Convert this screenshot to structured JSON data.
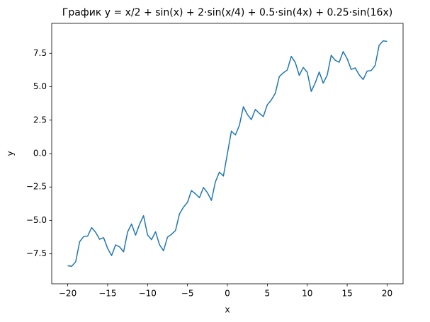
{
  "chart_data": {
    "type": "line",
    "title": "График y = x/2 + sin(x) + 2·sin(x/4) + 0.5·sin(4x) + 0.25·sin(16x)",
    "xlabel": "x",
    "ylabel": "y",
    "color": "#1f77b4",
    "x": [
      -20,
      -19.5,
      -19,
      -18.5,
      -18,
      -17.5,
      -17,
      -16.5,
      -16,
      -15.5,
      -15,
      -14.5,
      -14,
      -13.5,
      -13,
      -12.5,
      -12,
      -11.5,
      -11,
      -10.5,
      -10,
      -9.5,
      -9,
      -8.5,
      -8,
      -7.5,
      -7,
      -6.5,
      -6,
      -5.5,
      -5,
      -4.5,
      -4,
      -3.5,
      -3,
      -2.5,
      -2,
      -1.5,
      -1,
      -0.5,
      0,
      0.5,
      1,
      1.5,
      2,
      2.5,
      3,
      3.5,
      4,
      4.5,
      5,
      5.5,
      6,
      6.5,
      7,
      7.5,
      8,
      8.5,
      9,
      9.5,
      10,
      10.5,
      11,
      11.5,
      12,
      12.5,
      13,
      13.5,
      14,
      14.5,
      15,
      15.5,
      16,
      16.5,
      17,
      17.5,
      18,
      18.5,
      19,
      19.5,
      20
    ],
    "values": [
      -8.39,
      -8.43,
      -8.1,
      -6.59,
      -6.21,
      -6.17,
      -5.54,
      -5.89,
      -6.41,
      -6.29,
      -7.09,
      -7.63,
      -6.83,
      -6.98,
      -7.35,
      -5.87,
      -5.27,
      -6.1,
      -5.29,
      -4.65,
      -6.08,
      -6.44,
      -5.85,
      -6.82,
      -7.27,
      -6.25,
      -6.04,
      -5.76,
      -4.51,
      -4.01,
      -3.65,
      -2.77,
      -3.01,
      -3.3,
      -2.54,
      -2.93,
      -3.5,
      -2.11,
      -1.39,
      -1.68,
      0,
      1.68,
      1.39,
      2.11,
      3.5,
      2.93,
      2.54,
      3.3,
      3.01,
      2.77,
      3.65,
      4.01,
      4.51,
      5.76,
      6.04,
      6.25,
      7.27,
      6.82,
      5.85,
      6.44,
      6.08,
      4.65,
      5.29,
      6.1,
      5.27,
      5.87,
      7.35,
      6.98,
      6.83,
      7.63,
      7.09,
      6.29,
      6.41,
      5.89,
      5.54,
      6.17,
      6.21,
      6.59,
      8.1,
      8.43,
      8.39
    ],
    "xlim": [
      -22,
      22
    ],
    "xticks": [
      {
        "value": -20,
        "label": "−20"
      },
      {
        "value": -15,
        "label": "−15"
      },
      {
        "value": -10,
        "label": "−10"
      },
      {
        "value": -5,
        "label": "−5"
      },
      0,
      5,
      10,
      15,
      20
    ],
    "ylim": [
      -9.74,
      9.74
    ],
    "yticks": [
      {
        "value": -7.5,
        "label": "−7.5"
      },
      {
        "value": -5,
        "label": "−5.0"
      },
      {
        "value": -2.5,
        "label": "−2.5"
      },
      {
        "value": 0,
        "label": "0.0"
      },
      2.5,
      {
        "value": 5,
        "label": "5.0"
      },
      7.5
    ],
    "grid": false
  }
}
